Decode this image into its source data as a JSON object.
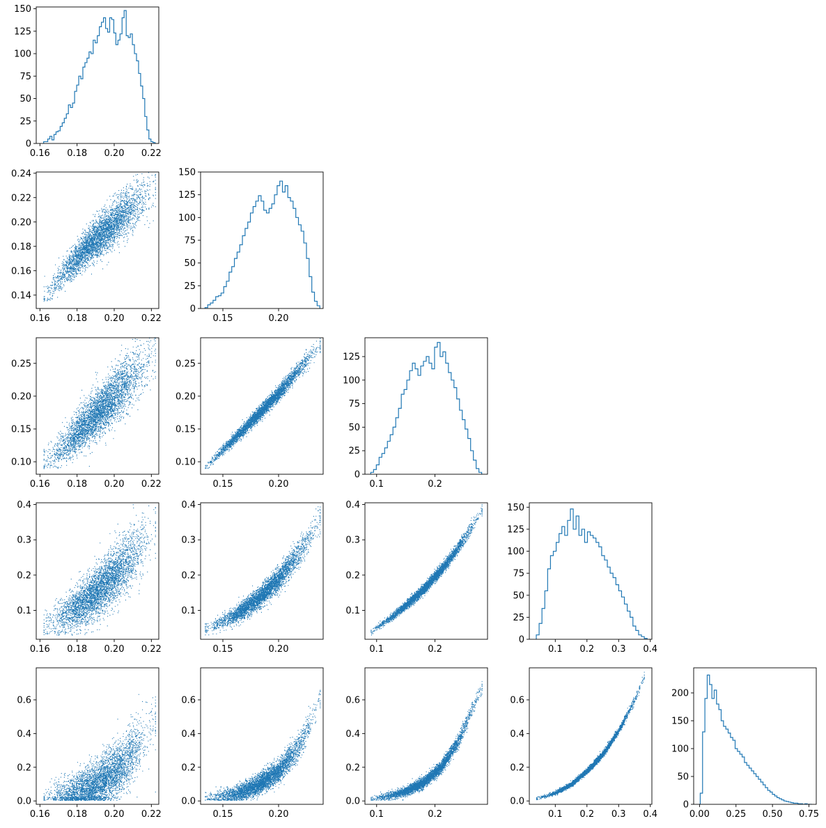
{
  "figure": {
    "kind": "corner plot (pairwise scatter + marginal histograms)",
    "point_color": "#1f77b4",
    "hist_color": "#1f77b4",
    "grid": false,
    "legend": "none"
  },
  "chart_data": [
    {
      "type": "histogram",
      "row": 0,
      "col": 0,
      "xlim": [
        0.158,
        0.224
      ],
      "ylim": [
        0,
        152
      ],
      "xticks": [
        0.16,
        0.18,
        0.2,
        0.22
      ],
      "xtick_labels": [
        "0.16",
        "0.18",
        "0.20",
        "0.22"
      ],
      "yticks": [
        0,
        25,
        50,
        75,
        100,
        125,
        150
      ],
      "ytick_labels": [
        "0",
        "25",
        "50",
        "75",
        "100",
        "125",
        "150"
      ],
      "bin_range": [
        0.162,
        0.222
      ],
      "counts": [
        2,
        2,
        5,
        8,
        4,
        10,
        13,
        14,
        19,
        23,
        28,
        33,
        43,
        40,
        45,
        58,
        65,
        75,
        72,
        85,
        90,
        95,
        102,
        100,
        115,
        112,
        120,
        130,
        135,
        140,
        128,
        124,
        140,
        138,
        123,
        110,
        115,
        122,
        140,
        148,
        120,
        118,
        122,
        110,
        100,
        92,
        78,
        64,
        50,
        30,
        15,
        5,
        2,
        1
      ]
    },
    {
      "type": "scatter",
      "row": 1,
      "col": 0,
      "xlim": [
        0.158,
        0.224
      ],
      "ylim": [
        0.129,
        0.241
      ],
      "xticks": [
        0.16,
        0.18,
        0.2,
        0.22
      ],
      "xtick_labels": [
        "0.16",
        "0.18",
        "0.20",
        "0.22"
      ],
      "yticks": [
        0.14,
        0.16,
        0.18,
        0.2,
        0.22,
        0.24
      ],
      "ytick_labels": [
        "0.14",
        "0.16",
        "0.18",
        "0.20",
        "0.22",
        "0.24"
      ],
      "x_range": [
        0.162,
        0.222
      ],
      "y_range": [
        0.135,
        0.236
      ],
      "trend_points": [
        [
          0.163,
          0.139
        ],
        [
          0.175,
          0.163
        ],
        [
          0.19,
          0.186
        ],
        [
          0.205,
          0.207
        ],
        [
          0.22,
          0.226
        ]
      ],
      "spread": 0.008,
      "n_points": 4000
    },
    {
      "type": "histogram",
      "row": 1,
      "col": 1,
      "xlim": [
        0.13,
        0.24
      ],
      "ylim": [
        0,
        150
      ],
      "xticks": [
        0.15,
        0.2
      ],
      "xtick_labels": [
        "0.15",
        "0.20"
      ],
      "yticks": [
        0,
        25,
        50,
        75,
        100,
        125,
        150
      ],
      "ytick_labels": [
        "0",
        "25",
        "50",
        "75",
        "100",
        "125",
        "150"
      ],
      "bin_range": [
        0.134,
        0.237
      ],
      "counts": [
        1,
        4,
        6,
        9,
        13,
        14,
        17,
        24,
        30,
        40,
        46,
        55,
        62,
        70,
        80,
        88,
        95,
        105,
        112,
        118,
        124,
        118,
        108,
        105,
        110,
        115,
        125,
        135,
        140,
        128,
        135,
        122,
        118,
        110,
        100,
        92,
        85,
        72,
        55,
        35,
        18,
        8,
        3
      ]
    },
    {
      "type": "scatter",
      "row": 2,
      "col": 0,
      "xlim": [
        0.158,
        0.224
      ],
      "ylim": [
        0.081,
        0.289
      ],
      "xticks": [
        0.16,
        0.18,
        0.2,
        0.22
      ],
      "xtick_labels": [
        "0.16",
        "0.18",
        "0.20",
        "0.22"
      ],
      "yticks": [
        0.1,
        0.15,
        0.2,
        0.25
      ],
      "ytick_labels": [
        "0.10",
        "0.15",
        "0.20",
        "0.25"
      ],
      "x_range": [
        0.162,
        0.222
      ],
      "y_range": [
        0.09,
        0.28
      ],
      "trend_points": [
        [
          0.163,
          0.1
        ],
        [
          0.175,
          0.13
        ],
        [
          0.19,
          0.172
        ],
        [
          0.205,
          0.215
        ],
        [
          0.22,
          0.26
        ]
      ],
      "spread": 0.018,
      "n_points": 4000
    },
    {
      "type": "scatter",
      "row": 2,
      "col": 1,
      "xlim": [
        0.13,
        0.24
      ],
      "ylim": [
        0.081,
        0.289
      ],
      "xticks": [
        0.15,
        0.2
      ],
      "xtick_labels": [
        "0.15",
        "0.20"
      ],
      "yticks": [
        0.1,
        0.15,
        0.2,
        0.25
      ],
      "ytick_labels": [
        "0.10",
        "0.15",
        "0.20",
        "0.25"
      ],
      "x_range": [
        0.134,
        0.237
      ],
      "y_range": [
        0.09,
        0.28
      ],
      "trend_points": [
        [
          0.136,
          0.095
        ],
        [
          0.16,
          0.135
        ],
        [
          0.18,
          0.17
        ],
        [
          0.2,
          0.205
        ],
        [
          0.225,
          0.255
        ],
        [
          0.236,
          0.275
        ]
      ],
      "spread": 0.005,
      "n_points": 4000
    },
    {
      "type": "histogram",
      "row": 2,
      "col": 2,
      "xlim": [
        0.08,
        0.29
      ],
      "ylim": [
        0,
        145
      ],
      "xticks": [
        0.1,
        0.2
      ],
      "xtick_labels": [
        "0.1",
        "0.2"
      ],
      "yticks": [
        0,
        25,
        50,
        75,
        100,
        125
      ],
      "ytick_labels": [
        "0",
        "25",
        "50",
        "75",
        "100",
        "125"
      ],
      "bin_range": [
        0.09,
        0.28
      ],
      "counts": [
        2,
        5,
        10,
        18,
        22,
        28,
        35,
        42,
        50,
        60,
        70,
        85,
        90,
        100,
        110,
        118,
        112,
        105,
        115,
        120,
        125,
        118,
        112,
        135,
        140,
        125,
        130,
        118,
        108,
        100,
        92,
        80,
        68,
        58,
        48,
        38,
        25,
        15,
        6,
        2
      ]
    },
    {
      "type": "scatter",
      "row": 3,
      "col": 0,
      "xlim": [
        0.158,
        0.224
      ],
      "ylim": [
        0.018,
        0.405
      ],
      "xticks": [
        0.16,
        0.18,
        0.2,
        0.22
      ],
      "xtick_labels": [
        "0.16",
        "0.18",
        "0.20",
        "0.22"
      ],
      "yticks": [
        0.1,
        0.2,
        0.3,
        0.4
      ],
      "ytick_labels": [
        "0.1",
        "0.2",
        "0.3",
        "0.4"
      ],
      "x_range": [
        0.162,
        0.222
      ],
      "y_range": [
        0.03,
        0.38
      ],
      "trend_points": [
        [
          0.163,
          0.055
        ],
        [
          0.175,
          0.09
        ],
        [
          0.19,
          0.15
        ],
        [
          0.205,
          0.23
        ],
        [
          0.22,
          0.32
        ]
      ],
      "spread": 0.035,
      "n_points": 4000
    },
    {
      "type": "scatter",
      "row": 3,
      "col": 1,
      "xlim": [
        0.13,
        0.24
      ],
      "ylim": [
        0.018,
        0.405
      ],
      "xticks": [
        0.15,
        0.2
      ],
      "xtick_labels": [
        "0.15",
        "0.20"
      ],
      "yticks": [
        0.1,
        0.2,
        0.3,
        0.4
      ],
      "ytick_labels": [
        "0.1",
        "0.2",
        "0.3",
        "0.4"
      ],
      "x_range": [
        0.134,
        0.237
      ],
      "y_range": [
        0.03,
        0.38
      ],
      "trend_points": [
        [
          0.136,
          0.05
        ],
        [
          0.16,
          0.085
        ],
        [
          0.18,
          0.13
        ],
        [
          0.2,
          0.19
        ],
        [
          0.22,
          0.27
        ],
        [
          0.236,
          0.35
        ]
      ],
      "spread": 0.015,
      "n_points": 4000
    },
    {
      "type": "scatter",
      "row": 3,
      "col": 2,
      "xlim": [
        0.08,
        0.29
      ],
      "ylim": [
        0.018,
        0.405
      ],
      "xticks": [
        0.1,
        0.2
      ],
      "xtick_labels": [
        "0.1",
        "0.2"
      ],
      "yticks": [
        0.1,
        0.2,
        0.3,
        0.4
      ],
      "ytick_labels": [
        "0.1",
        "0.2",
        "0.3",
        "0.4"
      ],
      "x_range": [
        0.09,
        0.28
      ],
      "y_range": [
        0.03,
        0.38
      ],
      "trend_points": [
        [
          0.093,
          0.045
        ],
        [
          0.12,
          0.075
        ],
        [
          0.15,
          0.115
        ],
        [
          0.18,
          0.16
        ],
        [
          0.21,
          0.215
        ],
        [
          0.24,
          0.28
        ],
        [
          0.275,
          0.37
        ]
      ],
      "spread": 0.007,
      "n_points": 4000
    },
    {
      "type": "histogram",
      "row": 3,
      "col": 3,
      "xlim": [
        0.018,
        0.405
      ],
      "ylim": [
        0,
        155
      ],
      "xticks": [
        0.1,
        0.2,
        0.3,
        0.4
      ],
      "xtick_labels": [
        "0.1",
        "0.2",
        "0.3",
        "0.4"
      ],
      "yticks": [
        0,
        25,
        50,
        75,
        100,
        125,
        150
      ],
      "ytick_labels": [
        "0",
        "25",
        "50",
        "75",
        "100",
        "125",
        "150"
      ],
      "bin_range": [
        0.04,
        0.39
      ],
      "counts": [
        5,
        18,
        35,
        55,
        80,
        95,
        100,
        110,
        120,
        128,
        118,
        135,
        148,
        125,
        140,
        118,
        125,
        110,
        122,
        118,
        115,
        110,
        105,
        95,
        90,
        82,
        75,
        70,
        62,
        55,
        48,
        40,
        32,
        25,
        15,
        10,
        5,
        3,
        1
      ]
    },
    {
      "type": "scatter",
      "row": 4,
      "col": 0,
      "xlim": [
        0.158,
        0.224
      ],
      "ylim": [
        -0.02,
        0.79
      ],
      "xticks": [
        0.16,
        0.18,
        0.2,
        0.22
      ],
      "xtick_labels": [
        "0.16",
        "0.18",
        "0.20",
        "0.22"
      ],
      "yticks": [
        0.0,
        0.2,
        0.4,
        0.6
      ],
      "ytick_labels": [
        "0.0",
        "0.2",
        "0.4",
        "0.6"
      ],
      "x_range": [
        0.162,
        0.222
      ],
      "y_range": [
        0.005,
        0.77
      ],
      "trend_points": [
        [
          0.163,
          0.015
        ],
        [
          0.175,
          0.035
        ],
        [
          0.19,
          0.09
        ],
        [
          0.205,
          0.22
        ],
        [
          0.22,
          0.45
        ]
      ],
      "spread": 0.07,
      "n_points": 4000
    },
    {
      "type": "scatter",
      "row": 4,
      "col": 1,
      "xlim": [
        0.13,
        0.24
      ],
      "ylim": [
        -0.02,
        0.79
      ],
      "xticks": [
        0.15,
        0.2
      ],
      "xtick_labels": [
        "0.15",
        "0.20"
      ],
      "yticks": [
        0.0,
        0.2,
        0.4,
        0.6
      ],
      "ytick_labels": [
        "0.0",
        "0.2",
        "0.4",
        "0.6"
      ],
      "x_range": [
        0.134,
        0.237
      ],
      "y_range": [
        0.005,
        0.77
      ],
      "trend_points": [
        [
          0.136,
          0.02
        ],
        [
          0.16,
          0.04
        ],
        [
          0.18,
          0.09
        ],
        [
          0.2,
          0.18
        ],
        [
          0.22,
          0.34
        ],
        [
          0.236,
          0.6
        ]
      ],
      "spread": 0.03,
      "n_points": 4000
    },
    {
      "type": "scatter",
      "row": 4,
      "col": 2,
      "xlim": [
        0.08,
        0.29
      ],
      "ylim": [
        -0.02,
        0.79
      ],
      "xticks": [
        0.1,
        0.2
      ],
      "xtick_labels": [
        "0.1",
        "0.2"
      ],
      "yticks": [
        0.0,
        0.2,
        0.4,
        0.6
      ],
      "ytick_labels": [
        "0.0",
        "0.2",
        "0.4",
        "0.6"
      ],
      "x_range": [
        0.09,
        0.28
      ],
      "y_range": [
        0.005,
        0.77
      ],
      "trend_points": [
        [
          0.093,
          0.015
        ],
        [
          0.12,
          0.03
        ],
        [
          0.15,
          0.06
        ],
        [
          0.18,
          0.11
        ],
        [
          0.21,
          0.2
        ],
        [
          0.24,
          0.36
        ],
        [
          0.27,
          0.6
        ]
      ],
      "spread": 0.016,
      "n_points": 4000
    },
    {
      "type": "scatter",
      "row": 4,
      "col": 3,
      "xlim": [
        0.018,
        0.405
      ],
      "ylim": [
        -0.02,
        0.79
      ],
      "xticks": [
        0.1,
        0.2,
        0.3,
        0.4
      ],
      "xtick_labels": [
        "0.1",
        "0.2",
        "0.3",
        "0.4"
      ],
      "yticks": [
        0.0,
        0.2,
        0.4,
        0.6
      ],
      "ytick_labels": [
        "0.0",
        "0.2",
        "0.4",
        "0.6"
      ],
      "x_range": [
        0.04,
        0.38
      ],
      "y_range": [
        0.005,
        0.77
      ],
      "trend_points": [
        [
          0.04,
          0.015
        ],
        [
          0.1,
          0.05
        ],
        [
          0.15,
          0.1
        ],
        [
          0.2,
          0.18
        ],
        [
          0.25,
          0.28
        ],
        [
          0.3,
          0.42
        ],
        [
          0.35,
          0.6
        ],
        [
          0.38,
          0.74
        ]
      ],
      "spread": 0.008,
      "n_points": 4000
    },
    {
      "type": "histogram",
      "row": 4,
      "col": 4,
      "xlim": [
        -0.04,
        0.8
      ],
      "ylim": [
        0,
        245
      ],
      "xticks": [
        0.0,
        0.25,
        0.5,
        0.75
      ],
      "xtick_labels": [
        "0.00",
        "0.25",
        "0.50",
        "0.75"
      ],
      "yticks": [
        0,
        50,
        100,
        150,
        200
      ],
      "ytick_labels": [
        "0",
        "50",
        "100",
        "150",
        "200"
      ],
      "bin_range": [
        0.005,
        0.77
      ],
      "counts": [
        20,
        130,
        190,
        232,
        215,
        190,
        205,
        180,
        170,
        150,
        140,
        135,
        128,
        120,
        115,
        100,
        95,
        90,
        85,
        75,
        70,
        65,
        60,
        55,
        50,
        45,
        40,
        35,
        30,
        25,
        22,
        18,
        15,
        12,
        10,
        8,
        6,
        5,
        4,
        3,
        2,
        2,
        1,
        1,
        0,
        1,
        0,
        0
      ]
    }
  ]
}
